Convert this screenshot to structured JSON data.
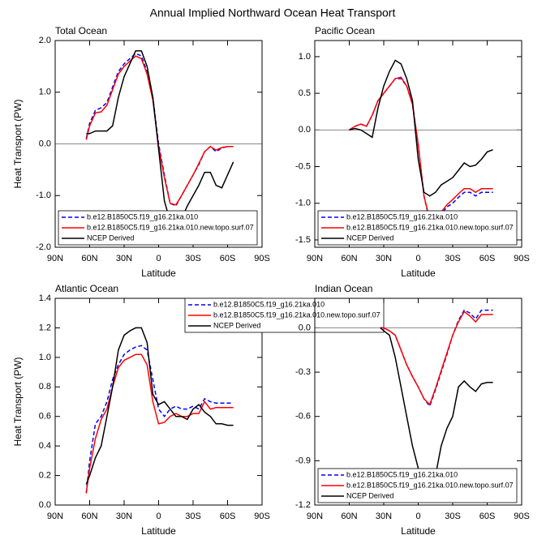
{
  "title": "Annual Implied Northward Ocean Heat Transport",
  "chart_data": [
    {
      "type": "line",
      "title": "Total Ocean",
      "xlabel": "Latitude",
      "ylabel": "Heat Transport (PW)",
      "x": [
        63,
        60,
        55,
        50,
        45,
        40,
        35,
        30,
        25,
        20,
        15,
        10,
        5,
        0,
        -5,
        -10,
        -15,
        -20,
        -25,
        -30,
        -35,
        -40,
        -45,
        -50,
        -55,
        -60,
        -65
      ],
      "series": [
        {
          "name": "b.e12.B1850C5.f19_g16.21ka.010",
          "color": "#0000ff",
          "linestyle": "dashed",
          "values": [
            0.1,
            0.4,
            0.65,
            0.7,
            0.8,
            1.1,
            1.4,
            1.55,
            1.65,
            1.75,
            1.7,
            1.4,
            0.9,
            0.0,
            -0.6,
            -1.15,
            -1.2,
            -1.0,
            -0.8,
            -0.6,
            -0.4,
            -0.15,
            -0.05,
            -0.15,
            -0.08,
            -0.05,
            -0.05
          ]
        },
        {
          "name": "b.e12.B1850C5.f19_g16.21ka.010.new.topo.surf.07",
          "color": "#ff0000",
          "linestyle": "solid",
          "values": [
            0.08,
            0.35,
            0.6,
            0.62,
            0.75,
            1.05,
            1.35,
            1.5,
            1.6,
            1.7,
            1.65,
            1.35,
            0.85,
            -0.05,
            -0.65,
            -1.15,
            -1.18,
            -1.0,
            -0.8,
            -0.6,
            -0.38,
            -0.15,
            -0.05,
            -0.12,
            -0.07,
            -0.05,
            -0.05
          ]
        },
        {
          "name": "NCEP Derived",
          "color": "#000000",
          "linestyle": "solid",
          "values": [
            0.2,
            0.2,
            0.25,
            0.25,
            0.25,
            0.35,
            0.9,
            1.3,
            1.55,
            1.8,
            1.8,
            1.5,
            0.9,
            -0.1,
            -1.1,
            -1.5,
            -1.65,
            -1.45,
            -1.2,
            -1.0,
            -0.8,
            -0.55,
            -0.55,
            -0.8,
            -0.85,
            -0.6,
            -0.35
          ]
        }
      ],
      "xlim": [
        90,
        -90
      ],
      "xticks": [
        {
          "value": 90,
          "label": "90N"
        },
        {
          "value": 60,
          "label": "60N"
        },
        {
          "value": 30,
          "label": "30N"
        },
        0,
        {
          "value": -30,
          "label": "30S"
        },
        {
          "value": -60,
          "label": "60S"
        },
        {
          "value": -90,
          "label": "90S"
        }
      ],
      "ylim": [
        -2,
        2
      ],
      "yticks": [
        {
          "value": 2,
          "label": "2.0"
        },
        {
          "value": 1,
          "label": "1.0"
        },
        {
          "value": 0,
          "label": "0.0"
        },
        {
          "value": -1,
          "label": "-1.0"
        },
        {
          "value": -2,
          "label": "-2.0"
        }
      ],
      "zero_line": true,
      "legend": "lower left"
    },
    {
      "type": "line",
      "title": "Pacific Ocean",
      "xlabel": "Latitude",
      "x": [
        60,
        55,
        50,
        45,
        40,
        35,
        30,
        25,
        20,
        15,
        10,
        5,
        0,
        -5,
        -10,
        -15,
        -20,
        -25,
        -30,
        -35,
        -40,
        -45,
        -50,
        -55,
        -60,
        -65
      ],
      "series": [
        {
          "name": "b.e12.B1850C5.f19_g16.21ka.010",
          "color": "#0000ff",
          "linestyle": "dashed",
          "values": [
            0.0,
            0.05,
            0.08,
            0.05,
            0.2,
            0.4,
            0.5,
            0.6,
            0.7,
            0.7,
            0.6,
            0.35,
            -0.2,
            -0.9,
            -1.25,
            -1.25,
            -1.15,
            -1.05,
            -1.0,
            -0.92,
            -0.85,
            -0.85,
            -0.9,
            -0.85,
            -0.85,
            -0.85
          ]
        },
        {
          "name": "b.e12.B1850C5.f19_g16.21ka.010.new.topo.surf.07",
          "color": "#ff0000",
          "linestyle": "solid",
          "values": [
            0.0,
            0.05,
            0.08,
            0.05,
            0.2,
            0.4,
            0.5,
            0.6,
            0.7,
            0.72,
            0.6,
            0.35,
            -0.2,
            -0.9,
            -1.22,
            -1.22,
            -1.12,
            -1.02,
            -0.95,
            -0.87,
            -0.8,
            -0.8,
            -0.85,
            -0.8,
            -0.8,
            -0.8
          ]
        },
        {
          "name": "NCEP Derived",
          "color": "#000000",
          "linestyle": "solid",
          "values": [
            0.0,
            0.02,
            0.0,
            -0.05,
            -0.1,
            0.3,
            0.6,
            0.8,
            0.95,
            0.9,
            0.7,
            0.4,
            -0.4,
            -0.85,
            -0.9,
            -0.85,
            -0.75,
            -0.7,
            -0.65,
            -0.55,
            -0.45,
            -0.5,
            -0.48,
            -0.4,
            -0.3,
            -0.27
          ]
        }
      ],
      "xlim": [
        90,
        -90
      ],
      "xticks": [
        {
          "value": 90,
          "label": "90N"
        },
        {
          "value": 60,
          "label": "60N"
        },
        {
          "value": 30,
          "label": "30N"
        },
        0,
        {
          "value": -30,
          "label": "30S"
        },
        {
          "value": -60,
          "label": "60S"
        },
        {
          "value": -90,
          "label": "90S"
        }
      ],
      "ylim": [
        -1.6,
        1.22
      ],
      "yticks": [
        {
          "value": 1,
          "label": "1.0"
        },
        0.5,
        {
          "value": 0,
          "label": "0.0"
        },
        -0.5,
        {
          "value": -1,
          "label": "-1.0"
        },
        -1.5
      ],
      "zero_line": true,
      "legend": "lower left"
    },
    {
      "type": "line",
      "title": "Atlantic Ocean",
      "xlabel": "Latitude",
      "ylabel": "Heat Transport (PW)",
      "x": [
        63,
        60,
        55,
        50,
        45,
        40,
        35,
        30,
        25,
        20,
        15,
        10,
        5,
        0,
        -5,
        -10,
        -15,
        -20,
        -25,
        -30,
        -35,
        -40,
        -45,
        -50,
        -55,
        -60,
        -65
      ],
      "series": [
        {
          "name": "b.e12.B1850C5.f19_g16.21ka.010",
          "color": "#0000ff",
          "linestyle": "dashed",
          "values": [
            0.08,
            0.3,
            0.55,
            0.6,
            0.7,
            0.85,
            0.95,
            1.02,
            1.05,
            1.07,
            1.08,
            1.05,
            0.85,
            0.65,
            0.6,
            0.65,
            0.67,
            0.65,
            0.65,
            0.67,
            0.65,
            0.72,
            0.7,
            0.69,
            0.69,
            0.69,
            0.69
          ]
        },
        {
          "name": "b.e12.B1850C5.f19_g16.21ka.010.new.topo.surf.07",
          "color": "#ff0000",
          "linestyle": "solid",
          "values": [
            0.08,
            0.25,
            0.45,
            0.58,
            0.65,
            0.8,
            0.93,
            0.98,
            1.0,
            1.02,
            1.02,
            0.95,
            0.7,
            0.55,
            0.56,
            0.6,
            0.62,
            0.6,
            0.6,
            0.62,
            0.62,
            0.7,
            0.65,
            0.66,
            0.66,
            0.66,
            0.66
          ]
        },
        {
          "name": "NCEP Derived",
          "color": "#000000",
          "linestyle": "solid",
          "values": [
            0.14,
            0.2,
            0.32,
            0.4,
            0.6,
            0.8,
            1.05,
            1.15,
            1.18,
            1.2,
            1.2,
            1.1,
            0.75,
            0.68,
            0.7,
            0.65,
            0.6,
            0.6,
            0.58,
            0.65,
            0.68,
            0.63,
            0.6,
            0.55,
            0.55,
            0.54,
            0.54
          ]
        }
      ],
      "xlim": [
        90,
        -90
      ],
      "xticks": [
        {
          "value": 90,
          "label": "90N"
        },
        {
          "value": 60,
          "label": "60N"
        },
        {
          "value": 30,
          "label": "30N"
        },
        0,
        {
          "value": -30,
          "label": "30S"
        },
        {
          "value": -60,
          "label": "60S"
        },
        {
          "value": -90,
          "label": "90S"
        }
      ],
      "ylim": [
        0,
        1.4
      ],
      "yticks": [
        {
          "value": 0,
          "label": "0.0"
        },
        0.2,
        0.4,
        0.6,
        0.8,
        {
          "value": 1,
          "label": "1.0"
        },
        1.2,
        1.4
      ],
      "zero_line": false,
      "legend": "upper right"
    },
    {
      "type": "line",
      "title": "Indian Ocean",
      "xlabel": "Latitude",
      "x": [
        33,
        30,
        25,
        20,
        15,
        10,
        5,
        0,
        -5,
        -10,
        -15,
        -20,
        -25,
        -30,
        -35,
        -40,
        -45,
        -50,
        -55,
        -60,
        -65
      ],
      "series": [
        {
          "name": "b.e12.B1850C5.f19_g16.21ka.010",
          "color": "#0000ff",
          "linestyle": "dashed",
          "values": [
            0,
            0,
            -0.02,
            -0.05,
            -0.15,
            -0.25,
            -0.33,
            -0.4,
            -0.48,
            -0.53,
            -0.42,
            -0.3,
            -0.18,
            -0.05,
            0.05,
            0.12,
            0.1,
            0.06,
            0.12,
            0.12,
            0.12
          ]
        },
        {
          "name": "b.e12.B1850C5.f19_g16.21ka.010.new.topo.surf.07",
          "color": "#ff0000",
          "linestyle": "solid",
          "values": [
            0,
            0,
            -0.02,
            -0.05,
            -0.15,
            -0.25,
            -0.33,
            -0.4,
            -0.48,
            -0.52,
            -0.41,
            -0.29,
            -0.17,
            -0.05,
            0.04,
            0.11,
            0.08,
            0.04,
            0.09,
            0.09,
            0.09
          ]
        },
        {
          "name": "NCEP Derived",
          "color": "#000000",
          "linestyle": "solid",
          "values": [
            0,
            -0.02,
            -0.05,
            -0.2,
            -0.4,
            -0.6,
            -0.8,
            -0.95,
            -1.05,
            -1.08,
            -1.0,
            -0.8,
            -0.68,
            -0.6,
            -0.4,
            -0.36,
            -0.4,
            -0.43,
            -0.38,
            -0.37,
            -0.37
          ]
        }
      ],
      "xlim": [
        90,
        -90
      ],
      "xticks": [
        {
          "value": 90,
          "label": "90N"
        },
        {
          "value": 60,
          "label": "60N"
        },
        {
          "value": 30,
          "label": "30N"
        },
        0,
        {
          "value": -30,
          "label": "30S"
        },
        {
          "value": -60,
          "label": "60S"
        },
        {
          "value": -90,
          "label": "90S"
        }
      ],
      "ylim": [
        -1.2,
        0.2
      ],
      "yticks": [
        {
          "value": 0,
          "label": "0.0"
        },
        -0.3,
        -0.6,
        -0.9,
        -1.2
      ],
      "zero_line": true,
      "legend": "lower left"
    }
  ]
}
